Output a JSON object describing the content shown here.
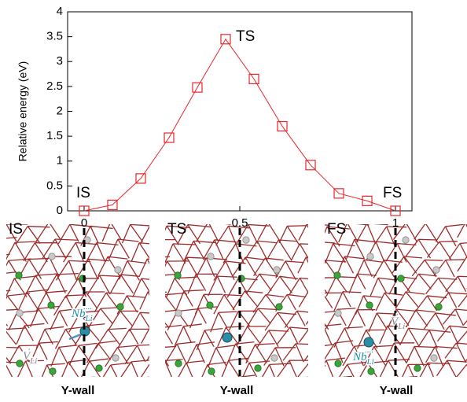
{
  "chart_data": {
    "type": "line",
    "y_label": "Relative energy (eV)",
    "x": [
      0,
      0.0909,
      0.1818,
      0.2727,
      0.3636,
      0.4545,
      0.5455,
      0.6364,
      0.7273,
      0.8182,
      0.9091,
      1
    ],
    "x_note": null,
    "series": [
      {
        "name": null,
        "color": "#e8262a",
        "marker": "square",
        "values": [
          0,
          0.12,
          0.65,
          1.47,
          2.48,
          3.45,
          2.65,
          1.7,
          0.92,
          0.35,
          0.2,
          0
        ]
      }
    ],
    "xlim": [
      -0.053,
      1.053
    ],
    "ylim": [
      0,
      4
    ],
    "xticks": [
      0,
      0.5,
      1
    ],
    "yticks": [
      0,
      0.5,
      1,
      1.5,
      2,
      2.5,
      3,
      3.5,
      4
    ],
    "annotations": [
      "IS",
      "TS",
      "FS"
    ]
  },
  "panels": [
    {
      "label": "IS",
      "wall": "Y-wall",
      "nb": {
        "base": "Nb",
        "sub": "Li",
        "sup": "····"
      },
      "v": {
        "base": "V",
        "sub": "Li",
        "sup": "′"
      }
    },
    {
      "label": "TS",
      "wall": "Y-wall"
    },
    {
      "label": "FS",
      "wall": "Y-wall",
      "nb": {
        "base": "Nb",
        "sub": "Li",
        "sup": "····"
      },
      "v": {
        "base": "V",
        "sub": "Li",
        "sup": "′"
      }
    }
  ]
}
